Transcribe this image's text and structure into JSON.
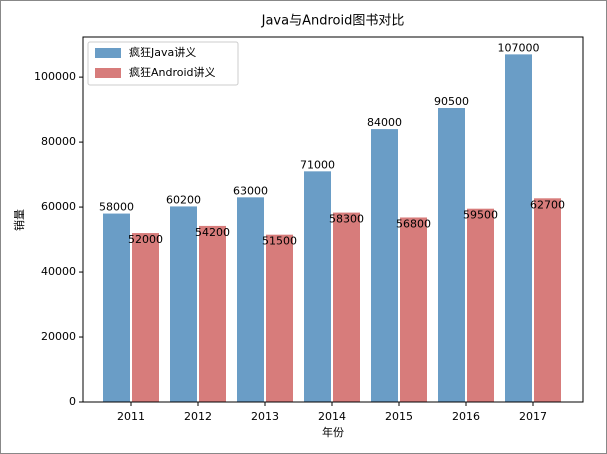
{
  "chart_data": {
    "type": "bar",
    "title": "Java与Android图书对比",
    "x_label": "年份",
    "y_label": "销量",
    "categories": [
      "2011",
      "2012",
      "2013",
      "2014",
      "2015",
      "2016",
      "2017"
    ],
    "series": [
      {
        "name": "疯狂Java讲义",
        "color": "#6a9dc6",
        "values": [
          58000,
          60200,
          63000,
          71000,
          84000,
          90500,
          107000
        ]
      },
      {
        "name": "疯狂Android讲义",
        "color": "#d77c7b",
        "values": [
          52000,
          54200,
          51500,
          58300,
          56800,
          59500,
          62700
        ]
      }
    ],
    "ylim": [
      0,
      112350
    ],
    "yticks": [
      0,
      20000,
      40000,
      60000,
      80000,
      100000
    ],
    "legend": "upper-left"
  }
}
